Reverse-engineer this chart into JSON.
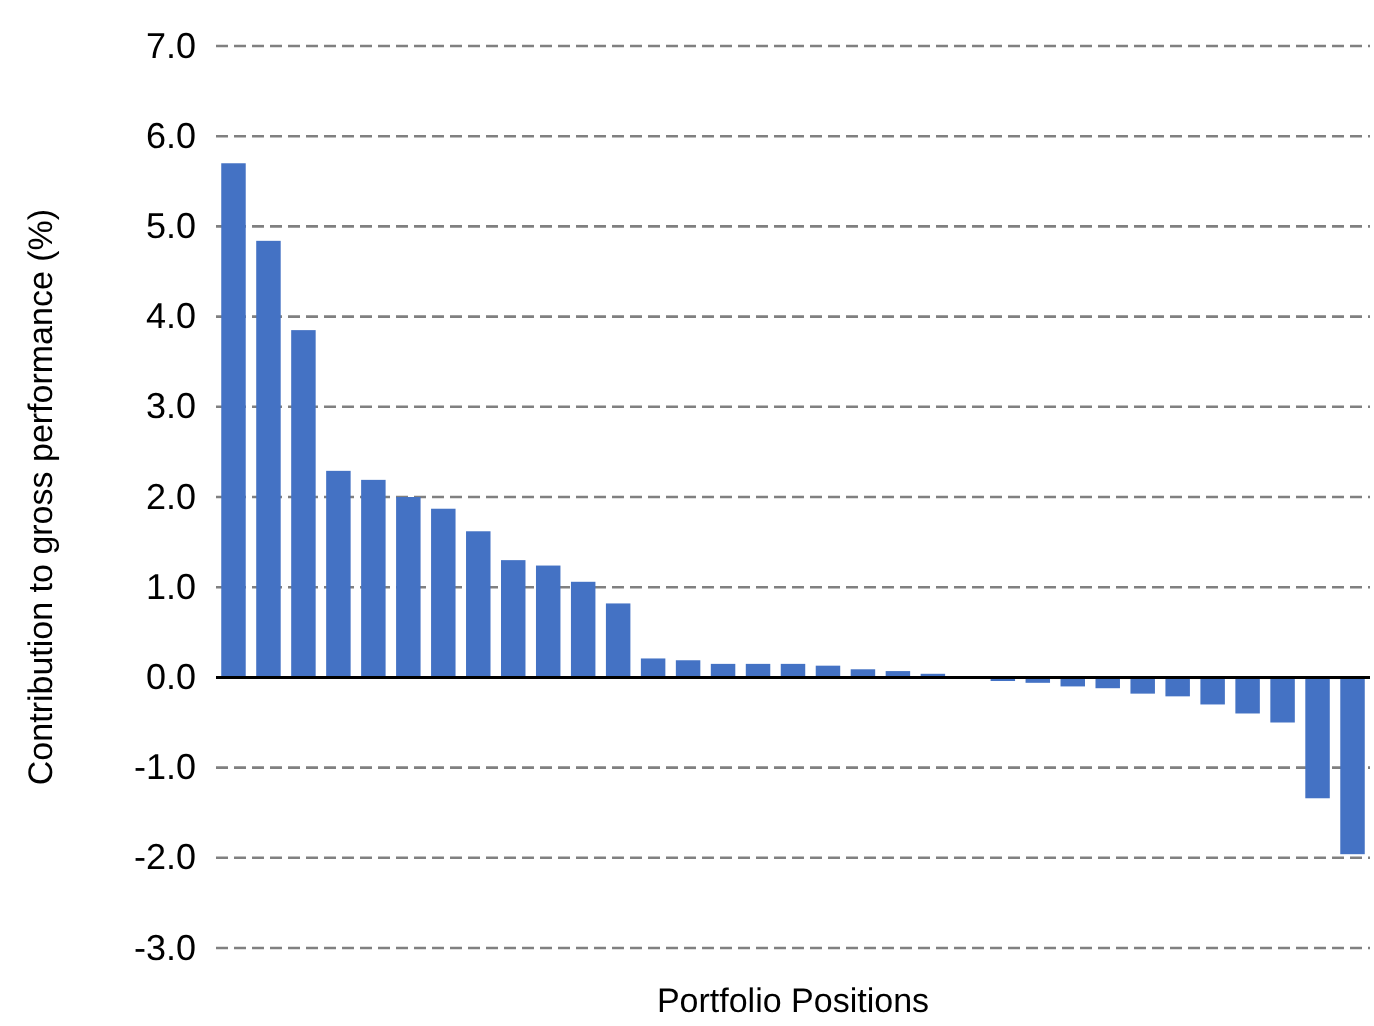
{
  "chart_data": {
    "type": "bar",
    "xlabel": "Portfolio Positions",
    "ylabel": "Contribution to gross performance (%)",
    "categories": [
      null,
      null,
      null,
      null,
      null,
      null,
      null,
      null,
      null,
      null,
      null,
      null,
      null,
      null,
      null,
      null,
      null,
      null,
      null,
      null,
      null,
      null,
      null,
      null,
      null,
      null,
      null,
      null,
      null,
      null,
      null,
      null,
      null
    ],
    "values": [
      5.7,
      4.84,
      3.85,
      2.29,
      2.19,
      2.0,
      1.87,
      1.62,
      1.3,
      1.24,
      1.06,
      0.82,
      0.21,
      0.19,
      0.15,
      0.15,
      0.15,
      0.13,
      0.09,
      0.07,
      0.04,
      0,
      -0.04,
      -0.06,
      -0.1,
      -0.12,
      -0.18,
      -0.21,
      -0.3,
      -0.4,
      -0.5,
      -1.34,
      -1.96
    ],
    "color": "#4472c4",
    "ylim": [
      -3,
      7
    ],
    "yticks": [
      {
        "value": -3,
        "label": "-3.0"
      },
      {
        "value": -2,
        "label": "-2.0"
      },
      {
        "value": -1,
        "label": "-1.0"
      },
      {
        "value": 0,
        "label": "0.0"
      },
      {
        "value": 1,
        "label": "1.0"
      },
      {
        "value": 2,
        "label": "2.0"
      },
      {
        "value": 3,
        "label": "3.0"
      },
      {
        "value": 4,
        "label": "4.0"
      },
      {
        "value": 5,
        "label": "5.0"
      },
      {
        "value": 6,
        "label": "6.0"
      },
      {
        "value": 7,
        "label": "7.0"
      }
    ],
    "grid": "y"
  }
}
